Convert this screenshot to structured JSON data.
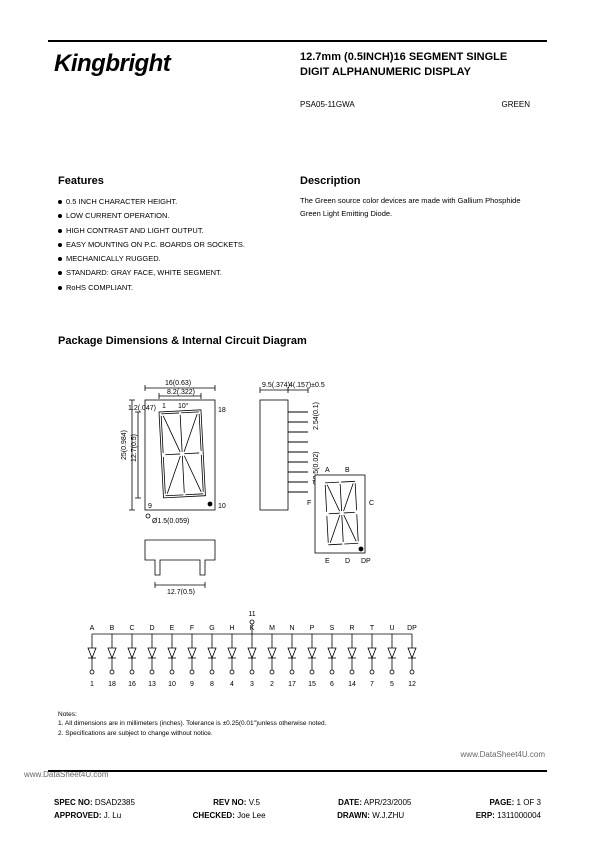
{
  "logo": "Kingbright",
  "title": "12.7mm (0.5INCH)16 SEGMENT SINGLE DIGIT ALPHANUMERIC DISPLAY",
  "part_number": "PSA05-11GWA",
  "color": "GREEN",
  "features": {
    "heading": "Features",
    "items": [
      "0.5 INCH CHARACTER HEIGHT.",
      "LOW CURRENT OPERATION.",
      "HIGH CONTRAST AND LIGHT OUTPUT.",
      "EASY MOUNTING ON P.C. BOARDS OR SOCKETS.",
      "MECHANICALLY RUGGED.",
      "STANDARD: GRAY FACE, WHITE SEGMENT.",
      "RoHS COMPLIANT."
    ]
  },
  "description": {
    "heading": "Description",
    "text": "The Green source color devices are made with Gallium Phosphide Green Light Emitting Diode."
  },
  "package_heading": "Package Dimensions & Internal Circuit Diagram",
  "diagram": {
    "stroke": "#000000",
    "bg": "#ffffff",
    "front": {
      "dims": {
        "top_width": "16(0.63)",
        "inner_width": "8.2(.322)",
        "left_top": "1.2(.047)",
        "height_left": "25(0.984)",
        "char_h": "12.7(0.5)",
        "top_margin": "1",
        "angle": "10°",
        "pin18": "18",
        "pin9": "9",
        "pin10": "10",
        "hole_dia": "Ø1.5(0.059)"
      }
    },
    "side": {
      "top_w": "9.5(.374)",
      "body_w": "4(.157)±0.5",
      "pitch": "2.54(0.1)",
      "pin_dia": "Ø0.5(0.02)",
      "bottom_w": "12.7(0.5)"
    },
    "anode_labels": [
      "A",
      "B",
      "C",
      "D",
      "DP",
      "E",
      "F"
    ]
  },
  "circuit": {
    "common_pin": "11",
    "segments": [
      "A",
      "B",
      "C",
      "D",
      "E",
      "F",
      "G",
      "H",
      "K",
      "M",
      "N",
      "P",
      "S",
      "R",
      "T",
      "U",
      "DP"
    ],
    "pins": [
      "1",
      "18",
      "16",
      "13",
      "10",
      "9",
      "8",
      "4",
      "3",
      "2",
      "17",
      "15",
      "6",
      "14",
      "7",
      "5",
      "12"
    ]
  },
  "notes": {
    "heading": "Notes:",
    "n1": "1. All dimensions are in millimeters (inches). Tolerance is ±0.25(0.01\")unless otherwise noted.",
    "n2": "2. Specifications are subject to change without notice."
  },
  "watermark_right": "www.DataSheet4U.com",
  "watermark_left": "www.DataSheet4U.com",
  "footer": {
    "spec_no_label": "SPEC NO:",
    "spec_no": "DSAD2385",
    "rev_label": "REV NO:",
    "rev": "V.5",
    "date_label": "DATE:",
    "date": "APR/23/2005",
    "page_label": "PAGE:",
    "page": "1 OF 3",
    "approved_label": "APPROVED:",
    "approved": "J. Lu",
    "checked_label": "CHECKED:",
    "checked": "Joe Lee",
    "drawn_label": "DRAWN:",
    "drawn": "W.J.ZHU",
    "erp_label": "ERP:",
    "erp": "1311000004"
  }
}
